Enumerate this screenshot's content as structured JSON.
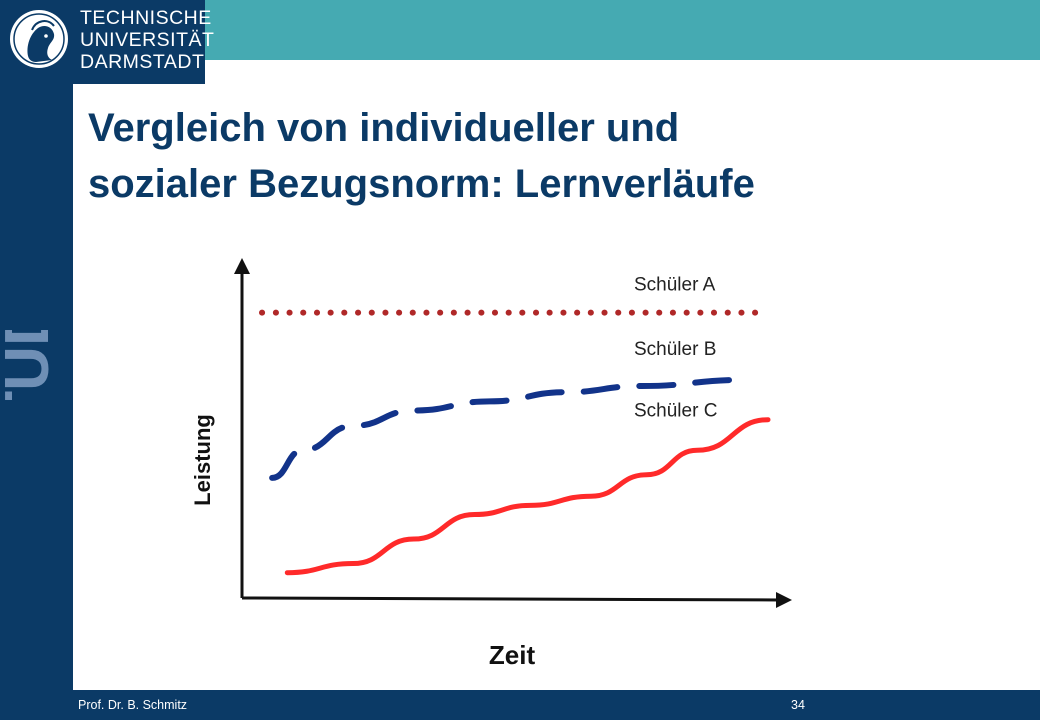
{
  "header": {
    "logo_lines": [
      "TECHNISCHE",
      "UNIVERSITÄT",
      "DARMSTADT"
    ],
    "brand_mark": "TUD",
    "colors": {
      "navy": "#0b3a66",
      "teal": "#45aab2"
    }
  },
  "slide": {
    "title_line1": "Vergleich von individueller und",
    "title_line2": "sozialer Bezugsnorm: Lernverläufe"
  },
  "chart_data": {
    "type": "line",
    "xlabel": "Zeit",
    "ylabel": "Leistung",
    "xlim": [
      0,
      10
    ],
    "ylim": [
      0,
      10
    ],
    "series": [
      {
        "name": "Schüler A",
        "style": "dotted",
        "color": "#b02828",
        "x": [
          0,
          10
        ],
        "y": [
          9.0,
          9.0
        ]
      },
      {
        "name": "Schüler B",
        "style": "dashed",
        "color": "#12338a",
        "x": [
          0.2,
          0.8,
          1.8,
          3,
          4.5,
          6,
          7.5,
          9.5
        ],
        "y": [
          3.6,
          4.5,
          5.3,
          5.8,
          6.1,
          6.4,
          6.6,
          6.8
        ]
      },
      {
        "name": "Schüler C",
        "style": "solid",
        "color": "#ff2a2a",
        "x": [
          0.5,
          1.8,
          3.0,
          4.2,
          5.3,
          6.5,
          7.6,
          8.6,
          10.0
        ],
        "y": [
          0.5,
          0.8,
          1.6,
          2.4,
          2.7,
          3.0,
          3.7,
          4.5,
          5.5
        ]
      }
    ]
  },
  "footer": {
    "author": "Prof. Dr. B. Schmitz",
    "page": "34"
  }
}
